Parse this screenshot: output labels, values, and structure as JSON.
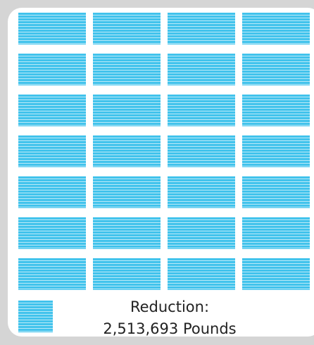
{
  "pictogram": {
    "unit_color": "#42c3ec",
    "stripe_color": "#b9e9f8",
    "rows": 7,
    "columns": 4,
    "total_units": 28
  },
  "legend": {
    "label": "Reduction:",
    "value": "2,513,693 Pounds"
  }
}
